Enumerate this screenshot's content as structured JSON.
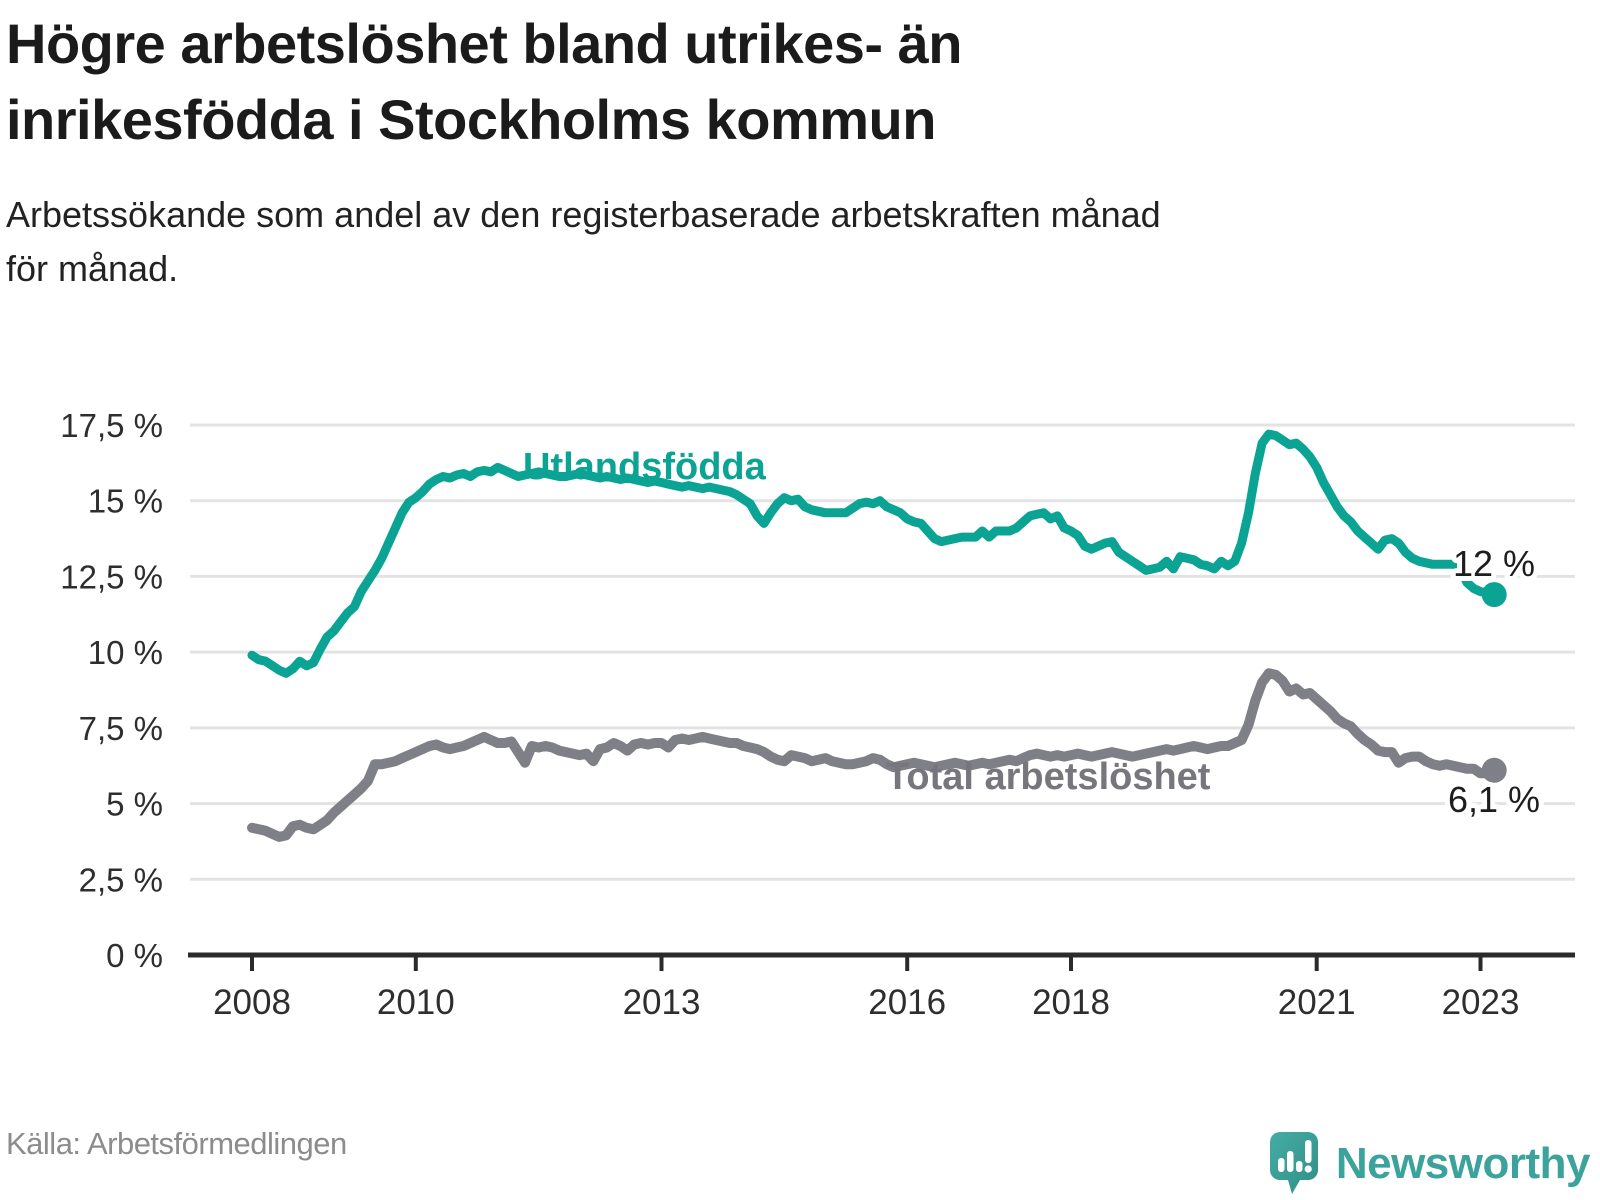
{
  "header": {
    "title_line1": "Högre arbetslöshet bland utrikes- än",
    "title_line2": "inrikesfödda i Stockholms kommun",
    "subtitle_line1": "Arbetssökande som andel av den registerbaserade arbetskraften månad",
    "subtitle_line2": "för månad."
  },
  "chart_data": {
    "type": "line",
    "title": "Högre arbetslöshet bland utrikes- än inrikesfödda i Stockholms kommun",
    "subtitle": "Arbetssökande som andel av den registerbaserade arbetskraften månad för månad.",
    "x_start": {
      "year": 2008,
      "month": 1
    },
    "x_end": {
      "year": 2023,
      "month": 3
    },
    "x_frequency": "monthly",
    "x_tick_years": [
      2008,
      2010,
      2013,
      2016,
      2018,
      2021,
      2023
    ],
    "x_tick_labels": [
      "2008",
      "2010",
      "2013",
      "2016",
      "2018",
      "2021",
      "2023"
    ],
    "y_tick_values": [
      17.5,
      15,
      12.5,
      10,
      7.5,
      5,
      2.5,
      0
    ],
    "y_tick_labels": [
      "17,5 %",
      "15 %",
      "12,5 %",
      "10 %",
      "7,5 %",
      "5 %",
      "2,5 %",
      "0 %"
    ],
    "ylim": [
      0,
      17.5
    ],
    "grid": "horizontal",
    "legend_position": "inline-labels",
    "series": [
      {
        "name": "Utlandsfödda",
        "color": "#0ba394",
        "end_label": "12 %",
        "values": [
          9.9,
          9.75,
          9.7,
          9.55,
          9.4,
          9.3,
          9.45,
          9.7,
          9.55,
          9.65,
          10.1,
          10.5,
          10.7,
          11.0,
          11.3,
          11.5,
          12.0,
          12.35,
          12.7,
          13.1,
          13.6,
          14.1,
          14.6,
          14.95,
          15.1,
          15.3,
          15.55,
          15.7,
          15.8,
          15.75,
          15.85,
          15.9,
          15.8,
          15.95,
          16.0,
          15.95,
          16.1,
          16.0,
          15.9,
          15.8,
          15.85,
          15.9,
          15.95,
          15.9,
          15.85,
          15.8,
          15.8,
          15.85,
          15.9,
          15.85,
          15.8,
          15.75,
          15.8,
          15.75,
          15.7,
          15.75,
          15.7,
          15.65,
          15.6,
          15.65,
          15.6,
          15.55,
          15.5,
          15.45,
          15.5,
          15.45,
          15.4,
          15.45,
          15.4,
          15.35,
          15.3,
          15.2,
          15.05,
          14.9,
          14.5,
          14.25,
          14.6,
          14.9,
          15.1,
          15.0,
          15.05,
          14.8,
          14.7,
          14.65,
          14.6,
          14.6,
          14.6,
          14.6,
          14.75,
          14.9,
          14.95,
          14.9,
          15.0,
          14.8,
          14.7,
          14.6,
          14.4,
          14.3,
          14.25,
          14.0,
          13.75,
          13.65,
          13.7,
          13.75,
          13.8,
          13.8,
          13.8,
          14.0,
          13.8,
          14.0,
          14.0,
          14.0,
          14.1,
          14.3,
          14.5,
          14.55,
          14.6,
          14.4,
          14.5,
          14.1,
          14.0,
          13.85,
          13.5,
          13.4,
          13.5,
          13.6,
          13.65,
          13.3,
          13.15,
          13.0,
          12.85,
          12.7,
          12.75,
          12.8,
          13.0,
          12.75,
          13.15,
          13.1,
          13.05,
          12.9,
          12.85,
          12.75,
          13.0,
          12.85,
          13.0,
          13.6,
          14.6,
          15.9,
          16.9,
          17.2,
          17.15,
          17.0,
          16.85,
          16.9,
          16.7,
          16.45,
          16.1,
          15.6,
          15.2,
          14.8,
          14.5,
          14.3,
          14.0,
          13.8,
          13.6,
          13.4,
          13.7,
          13.75,
          13.6,
          13.3,
          13.1,
          13.0,
          12.95,
          12.9,
          12.9,
          12.9,
          12.9,
          12.8,
          12.3,
          12.1,
          12.0,
          11.95,
          11.9
        ]
      },
      {
        "name": "Total arbetslöshet",
        "color": "#7f7f87",
        "end_label": "6,1 %",
        "values": [
          4.2,
          4.15,
          4.1,
          4.0,
          3.9,
          3.95,
          4.25,
          4.3,
          4.2,
          4.15,
          4.3,
          4.45,
          4.7,
          4.9,
          5.1,
          5.3,
          5.5,
          5.75,
          6.3,
          6.3,
          6.35,
          6.4,
          6.5,
          6.6,
          6.7,
          6.8,
          6.9,
          6.95,
          6.85,
          6.8,
          6.85,
          6.9,
          7.0,
          7.1,
          7.2,
          7.1,
          7.0,
          7.0,
          7.05,
          6.7,
          6.35,
          6.9,
          6.85,
          6.9,
          6.85,
          6.75,
          6.7,
          6.65,
          6.6,
          6.65,
          6.4,
          6.8,
          6.85,
          7.0,
          6.9,
          6.75,
          6.95,
          7.0,
          6.95,
          7.0,
          7.0,
          6.85,
          7.1,
          7.15,
          7.1,
          7.15,
          7.2,
          7.15,
          7.1,
          7.05,
          7.0,
          7.0,
          6.9,
          6.85,
          6.8,
          6.7,
          6.55,
          6.45,
          6.4,
          6.6,
          6.55,
          6.5,
          6.4,
          6.45,
          6.5,
          6.4,
          6.35,
          6.3,
          6.3,
          6.35,
          6.4,
          6.5,
          6.45,
          6.3,
          6.2,
          6.25,
          6.3,
          6.35,
          6.3,
          6.25,
          6.2,
          6.25,
          6.3,
          6.35,
          6.3,
          6.25,
          6.3,
          6.35,
          6.3,
          6.35,
          6.4,
          6.45,
          6.4,
          6.5,
          6.6,
          6.65,
          6.6,
          6.55,
          6.6,
          6.55,
          6.6,
          6.65,
          6.6,
          6.55,
          6.6,
          6.65,
          6.7,
          6.65,
          6.6,
          6.55,
          6.6,
          6.65,
          6.7,
          6.75,
          6.8,
          6.75,
          6.8,
          6.85,
          6.9,
          6.85,
          6.8,
          6.85,
          6.9,
          6.9,
          7.0,
          7.1,
          7.6,
          8.4,
          9.0,
          9.3,
          9.25,
          9.05,
          8.7,
          8.8,
          8.6,
          8.65,
          8.45,
          8.25,
          8.05,
          7.8,
          7.65,
          7.55,
          7.3,
          7.1,
          6.95,
          6.75,
          6.7,
          6.7,
          6.35,
          6.5,
          6.55,
          6.55,
          6.4,
          6.3,
          6.25,
          6.3,
          6.25,
          6.2,
          6.15,
          6.15,
          6.0,
          6.0,
          6.1
        ]
      }
    ]
  },
  "footer": {
    "source": "Källa: Arbetsförmedlingen",
    "brand": "Newsworthy"
  },
  "colors": {
    "accent_teal": "#0ba394",
    "line_gray": "#7f7f87",
    "brand_teal": "#3ba39b",
    "text_dark": "#1b1b1b",
    "gridline": "#e3e3e3",
    "axis": "#2b2b2b",
    "source_gray": "#8c8c8c"
  }
}
